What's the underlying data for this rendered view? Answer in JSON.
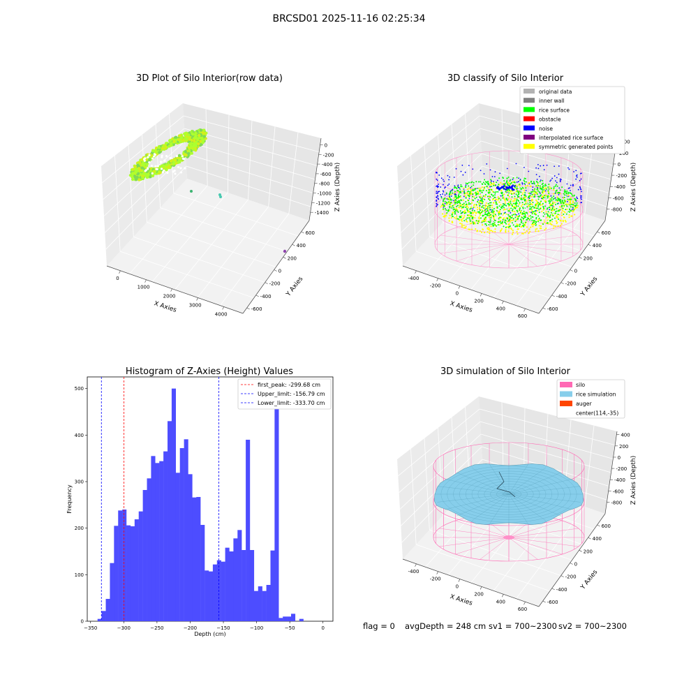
{
  "figure": {
    "suptitle": "BRCSD01 2025-11-16 02:25:34",
    "footer": {
      "flag": "flag = 0",
      "avgDepth": "avgDepth = 248 cm",
      "sv1": "sv1 = 700~2300",
      "sv2": "sv2 = 700~2300"
    }
  },
  "colors": {
    "hist_bar": "#4d4dff",
    "first_peak_line": "#ff0000",
    "limit_line": "#0000ff",
    "pane": "#f2f2f2",
    "silo": "#ff69b4",
    "rice_simulation": "#87ceeb",
    "auger": "#ff4500",
    "rice_surface": "#00ff00",
    "noise": "#0000ff",
    "symmetric": "#ffff00",
    "original": "#b3b3b3",
    "inner_wall": "#808080",
    "obstacle": "#ff0000",
    "interpolated": "#800080",
    "raw_cloud": "#adff2f"
  },
  "chart_data": [
    {
      "type": "scatter",
      "chart_kind": "3d-scatter",
      "title": "3D Plot of Silo Interior(row data)",
      "xlabel": "X Axies",
      "ylabel": "Y Axies",
      "zlabel": "Z Axies (Depth)",
      "x_ticks": [
        "0",
        "1000",
        "2000",
        "3000",
        "4000"
      ],
      "y_ticks": [
        "-600",
        "-400",
        "-200",
        "0",
        "200",
        "400",
        "600"
      ],
      "z_ticks": [
        "0",
        "-200",
        "-400",
        "-600",
        "-800",
        "-1000",
        "-1200",
        "-1400"
      ],
      "grid": true
    },
    {
      "type": "scatter",
      "chart_kind": "3d-scatter",
      "title": "3D classify of Silo Interior",
      "xlabel": "X Axies",
      "ylabel": "Y Axies",
      "zlabel": "Z Axies (Depth)",
      "x_ticks": [
        "-400",
        "-200",
        "0",
        "200",
        "400",
        "600"
      ],
      "y_ticks": [
        "-600",
        "-400",
        "-200",
        "0",
        "200",
        "400",
        "600"
      ],
      "z_ticks": [
        "400",
        "200",
        "0",
        "-200",
        "-400",
        "-600",
        "-800"
      ],
      "legend_position": "top-right",
      "legend": [
        {
          "label": "original data",
          "color": "#b3b3b3"
        },
        {
          "label": "inner wall",
          "color": "#808080"
        },
        {
          "label": "rice surface",
          "color": "#00ff00"
        },
        {
          "label": "obstacle",
          "color": "#ff0000"
        },
        {
          "label": "noise",
          "color": "#0000ff"
        },
        {
          "label": "interpolated rice surface",
          "color": "#800080"
        },
        {
          "label": "symmetric generated points",
          "color": "#ffff00"
        }
      ],
      "grid": true
    },
    {
      "type": "bar",
      "chart_kind": "histogram",
      "title": "Histogram of Z-Axies (Height) Values",
      "xlabel": "Depth (cm)",
      "ylabel": "Frequency",
      "xlim": [
        -355,
        15
      ],
      "ylim": [
        0,
        525
      ],
      "x_ticks": [
        -350,
        -300,
        -250,
        -200,
        -150,
        -100,
        -50,
        0
      ],
      "y_ticks": [
        0,
        100,
        200,
        300,
        400,
        500
      ],
      "bin_start": -339.5,
      "bin_width": 6.2,
      "values": [
        5,
        22,
        48,
        125,
        205,
        238,
        240,
        206,
        204,
        219,
        236,
        282,
        307,
        355,
        340,
        344,
        365,
        430,
        500,
        319,
        372,
        391,
        316,
        266,
        267,
        207,
        109,
        107,
        122,
        131,
        128,
        158,
        150,
        178,
        196,
        153,
        390,
        153,
        65,
        75,
        65,
        78,
        152,
        459,
        7,
        10,
        10,
        16,
        0,
        5
      ],
      "vlines": [
        {
          "label": "first_peak: -299.68 cm",
          "x": -299.68,
          "color": "#ff0000"
        },
        {
          "label": "Upper_limit: -156.79 cm",
          "x": -156.79,
          "color": "#0000ff"
        },
        {
          "label": "Lower_limit: -333.70 cm",
          "x": -333.7,
          "color": "#0000ff"
        }
      ],
      "legend_position": "top-right"
    },
    {
      "type": "area",
      "chart_kind": "3d-surface",
      "title": "3D simulation of Silo Interior",
      "xlabel": "X Axies",
      "ylabel": "Y Axies",
      "zlabel": "Z Axies (Depth)",
      "x_ticks": [
        "-400",
        "-200",
        "0",
        "200",
        "400",
        "600"
      ],
      "y_ticks": [
        "-600",
        "-400",
        "-200",
        "0",
        "200",
        "400",
        "600"
      ],
      "z_ticks": [
        "400",
        "200",
        "0",
        "-200",
        "-400",
        "-600",
        "-800"
      ],
      "legend_position": "top-right",
      "legend": [
        {
          "label": "silo",
          "color": "#ff69b4"
        },
        {
          "label": "rice simulation",
          "color": "#87ceeb"
        },
        {
          "label": "auger",
          "color": "#ff4500"
        },
        {
          "label": "center(114,-35)",
          "color": ""
        }
      ],
      "grid": true
    }
  ]
}
